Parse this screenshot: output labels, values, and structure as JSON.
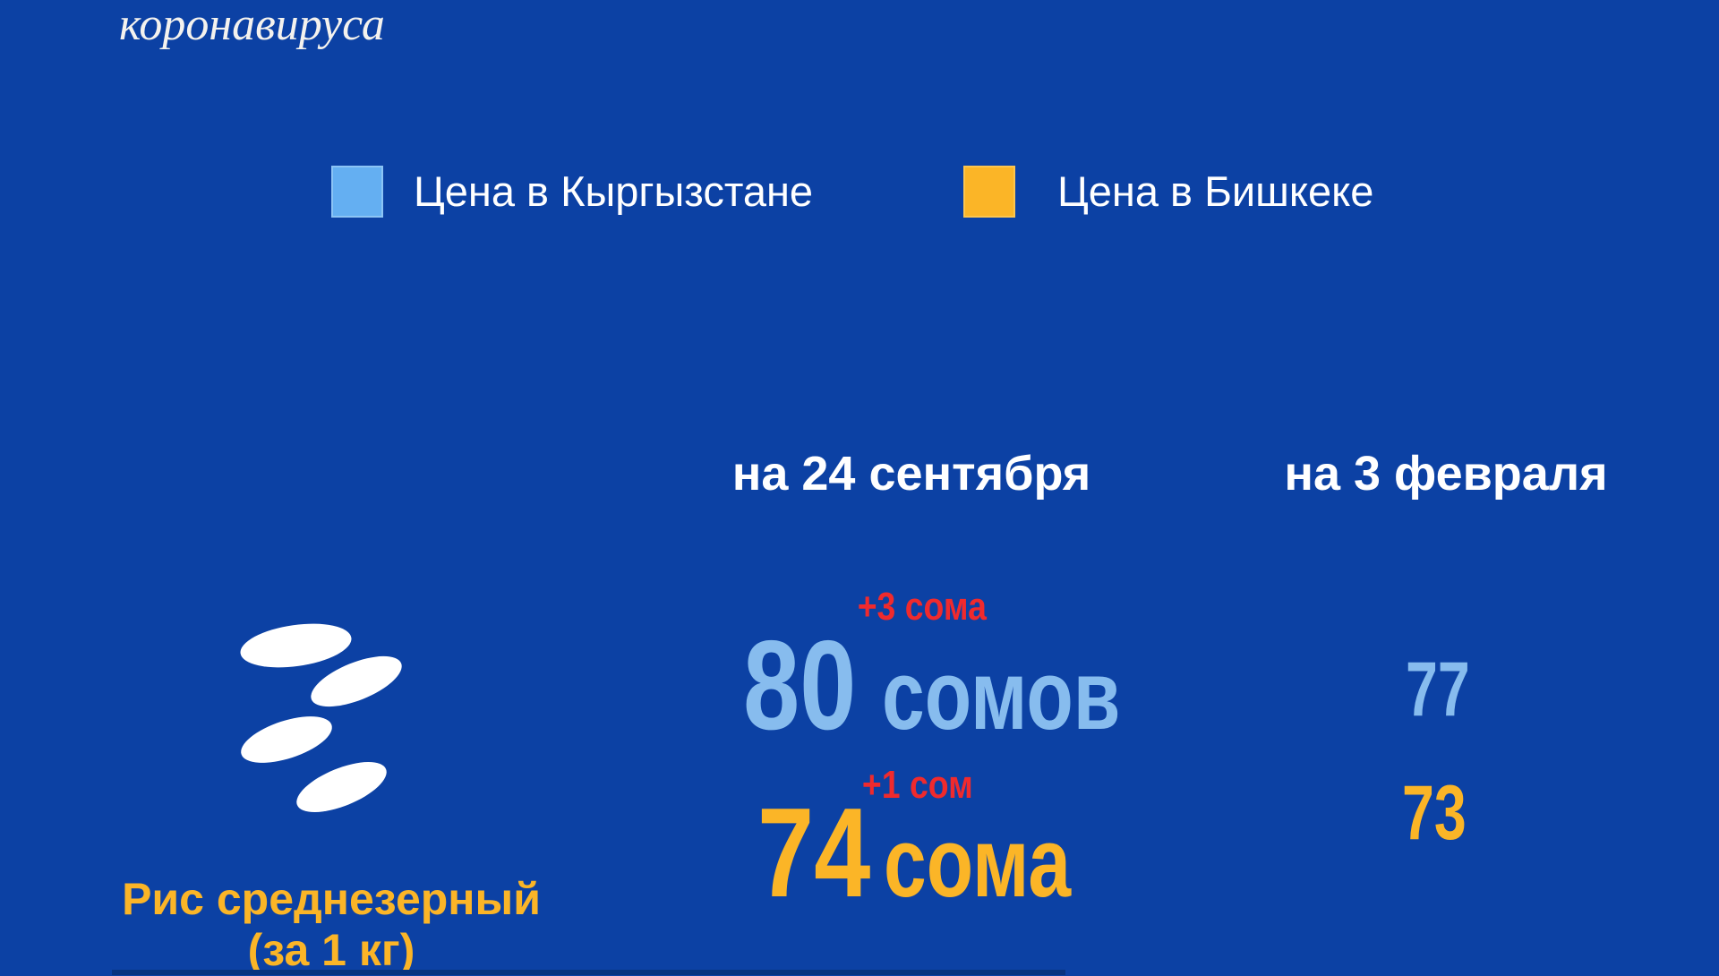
{
  "title_fragment": "коронавируса",
  "legend": {
    "items": [
      {
        "label": "Цена в Кыргызстане",
        "swatch_color": "#64aff2"
      },
      {
        "label": "Цена в Бишкеке",
        "swatch_color": "#fbb527"
      }
    ]
  },
  "table": {
    "column_headers": [
      "на 24 сентября",
      "на 3 февраля"
    ],
    "row": {
      "product_name": "Рис среднезерный",
      "product_unit": "(за 1 кг)",
      "icon": "rice-grains-icon",
      "kyrgyzstan": {
        "change_badge": "+3 сома",
        "sep_value": "80",
        "sep_unit": "сомов",
        "feb_value": "77"
      },
      "bishkek": {
        "change_badge": "+1 сом",
        "sep_value": "74",
        "sep_unit": "сома",
        "feb_value": "73"
      }
    }
  },
  "colors": {
    "background": "#0c41a4",
    "kyrgyzstan_blue": "#87bcee",
    "legend_blue": "#64aff2",
    "bishkek_yellow": "#fbb527",
    "change_red": "#f02a2d",
    "text_white": "#ffffff"
  },
  "chart_data": {
    "type": "table",
    "title_fragment": "коронавируса",
    "legend": [
      "Цена в Кыргызстане",
      "Цена в Бишкеке"
    ],
    "legend_position": "top",
    "columns": [
      "на 24 сентября",
      "на 3 февраля"
    ],
    "rows": [
      {
        "product": "Рис среднезерный (за 1 кг)",
        "series": [
          {
            "name": "Цена в Кыргызстане",
            "values": [
              80,
              77
            ],
            "unit": "сомов",
            "change_since_feb": "+3 сома"
          },
          {
            "name": "Цена в Бишкеке",
            "values": [
              74,
              73
            ],
            "unit": "сома",
            "change_since_feb": "+1 сом"
          }
        ]
      }
    ]
  }
}
